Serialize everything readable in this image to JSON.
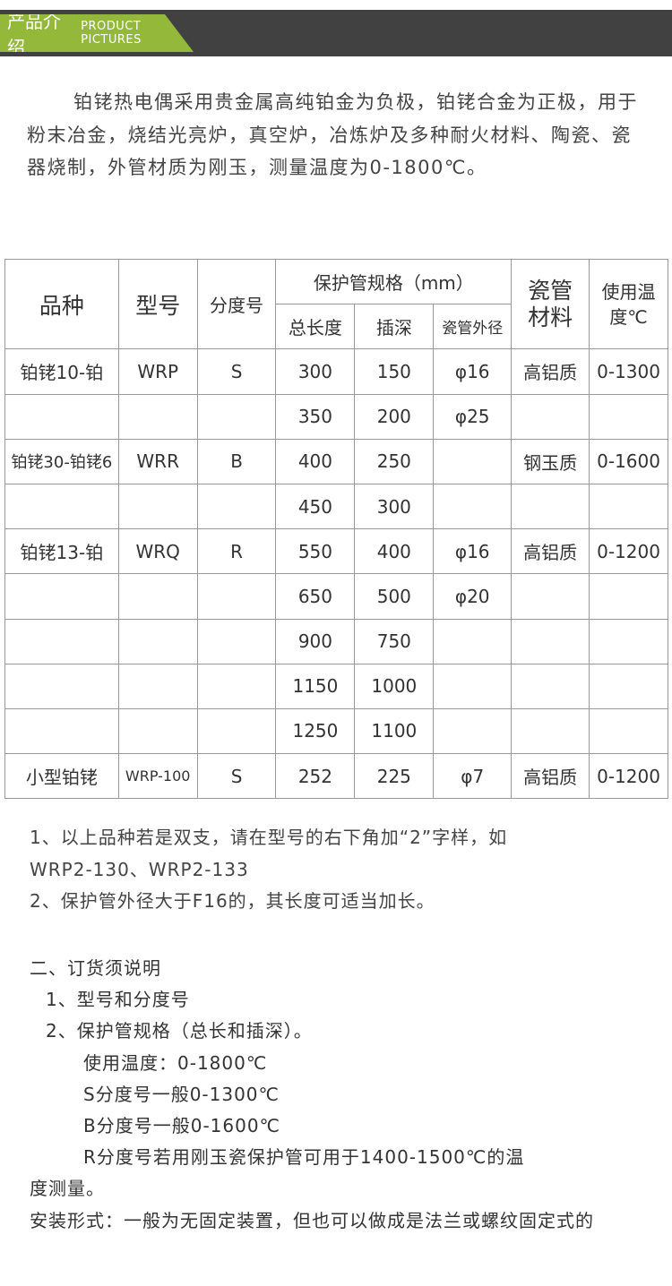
{
  "header": {
    "title_cn": "产品介绍",
    "title_en": "PRODUCT  PICTURES",
    "accent": "#94b93a",
    "bar": "#414141"
  },
  "intro": "铂铑热电偶采用贵金属高纯铂金为负极，铂铑合金为正极，用于粉末冶金，烧结光亮炉，真空炉，冶炼炉及多种耐火材料、陶瓷、瓷器烧制，外管材质为刚玉，测量温度为0-1800℃。",
  "table": {
    "headers": {
      "variety": "品种",
      "model": "型号",
      "graduation": "分度号",
      "spec": "保护管规格（mm）",
      "total_length": "总长度",
      "insert_depth": "插深",
      "outer_dia": "瓷管外径",
      "material": "瓷管材料",
      "temp": "使用温度℃"
    },
    "rows": [
      [
        "铂铑10-铂",
        "WRP",
        "S",
        "300",
        "150",
        "φ16",
        "高铝质",
        "0-1300"
      ],
      [
        "",
        "",
        "",
        "350",
        "200",
        "φ25",
        "",
        ""
      ],
      [
        "铂铑30-铂铑6",
        "WRR",
        "B",
        "400",
        "250",
        "",
        "钢玉质",
        "0-1600"
      ],
      [
        "",
        "",
        "",
        "450",
        "300",
        "",
        "",
        ""
      ],
      [
        "铂铑13-铂",
        "WRQ",
        "R",
        "550",
        "400",
        "φ16",
        "高铝质",
        "0-1200"
      ],
      [
        "",
        "",
        "",
        "650",
        "500",
        "φ20",
        "",
        ""
      ],
      [
        "",
        "",
        "",
        "900",
        "750",
        "",
        "",
        ""
      ],
      [
        "",
        "",
        "",
        "1150",
        "1000",
        "",
        "",
        ""
      ],
      [
        "",
        "",
        "",
        "1250",
        "1100",
        "",
        "",
        ""
      ],
      [
        "小型铂铑",
        "WRP-100",
        "S",
        "252",
        "225",
        "φ7",
        "高铝质",
        "0-1200"
      ]
    ]
  },
  "notes": [
    "1、以上品种若是双支，请在型号的右下角加“2”字样，如",
    "WRP2-130、WRP2-133",
    "2、保护管外径大于F16的，其长度可适当加长。"
  ],
  "order": {
    "title": "二、订货须说明",
    "items": [
      "1、型号和分度号",
      "2、保护管规格（总长和插深）。"
    ],
    "details": [
      "使用温度：0-1800℃",
      "S分度号一般0-1300℃",
      "B分度号一般0-1600℃",
      "R分度号若用刚玉瓷保护管可用于1400-1500℃的温"
    ],
    "cont": "度测量。",
    "install": "安装形式：一般为无固定装置，但也可以做成是法兰或螺纹固定式的"
  }
}
